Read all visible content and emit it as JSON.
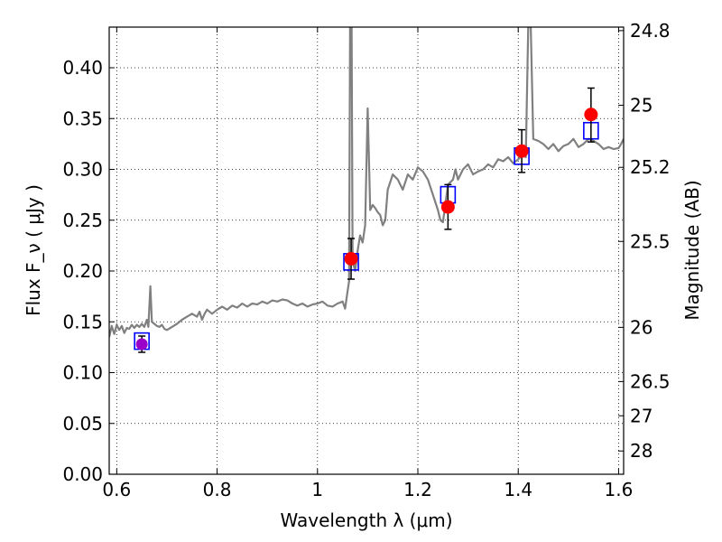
{
  "chart_data": {
    "type": "line",
    "xlabel": "Wavelength  λ (μm)",
    "ylabel_left": "Flux  F_ν  ( μJy )",
    "ylabel_right": "Magnitude (AB)",
    "xlim": [
      0.585,
      1.61
    ],
    "ylim": [
      0.0,
      0.44
    ],
    "grid": true,
    "x_ticks": [
      {
        "value": 0.6,
        "label": "0.6"
      },
      {
        "value": 0.8,
        "label": "0.8"
      },
      {
        "value": 1.0,
        "label": "1"
      },
      {
        "value": 1.2,
        "label": "1.2"
      },
      {
        "value": 1.4,
        "label": "1.4"
      },
      {
        "value": 1.6,
        "label": "1.6"
      }
    ],
    "y_ticks": [
      {
        "value": 0.0,
        "label": "0.00"
      },
      {
        "value": 0.05,
        "label": "0.05"
      },
      {
        "value": 0.1,
        "label": "0.10"
      },
      {
        "value": 0.15,
        "label": "0.15"
      },
      {
        "value": 0.2,
        "label": "0.20"
      },
      {
        "value": 0.25,
        "label": "0.25"
      },
      {
        "value": 0.3,
        "label": "0.30"
      },
      {
        "value": 0.35,
        "label": "0.35"
      },
      {
        "value": 0.4,
        "label": "0.40"
      }
    ],
    "right_ticks": [
      {
        "value": 24.8,
        "label": "24.8"
      },
      {
        "value": 25.0,
        "label": "25"
      },
      {
        "value": 25.2,
        "label": "25.2"
      },
      {
        "value": 25.5,
        "label": "25.5"
      },
      {
        "value": 26.0,
        "label": "26"
      },
      {
        "value": 26.5,
        "label": "26.5"
      },
      {
        "value": 27.0,
        "label": "27"
      },
      {
        "value": 28.0,
        "label": "28"
      }
    ],
    "colors": {
      "spectrum": "#808080",
      "model_box": "#0000ff",
      "observed": "#ff0000",
      "upper_limit": "#9b00c8",
      "errorbar": "#000000"
    },
    "spectrum": {
      "x": [
        0.585,
        0.59,
        0.595,
        0.6,
        0.605,
        0.61,
        0.615,
        0.62,
        0.625,
        0.63,
        0.635,
        0.64,
        0.645,
        0.65,
        0.655,
        0.66,
        0.663,
        0.667,
        0.67,
        0.675,
        0.68,
        0.685,
        0.69,
        0.695,
        0.7,
        0.71,
        0.72,
        0.73,
        0.74,
        0.75,
        0.76,
        0.765,
        0.77,
        0.775,
        0.78,
        0.79,
        0.8,
        0.81,
        0.82,
        0.83,
        0.84,
        0.85,
        0.86,
        0.87,
        0.88,
        0.89,
        0.9,
        0.91,
        0.92,
        0.93,
        0.94,
        0.95,
        0.96,
        0.97,
        0.98,
        0.99,
        1.0,
        1.01,
        1.02,
        1.03,
        1.04,
        1.05,
        1.055,
        1.06,
        1.063,
        1.065,
        1.068,
        1.07,
        1.075,
        1.08,
        1.085,
        1.09,
        1.095,
        1.1,
        1.103,
        1.105,
        1.11,
        1.115,
        1.12,
        1.125,
        1.13,
        1.135,
        1.14,
        1.15,
        1.16,
        1.17,
        1.18,
        1.19,
        1.2,
        1.21,
        1.22,
        1.23,
        1.24,
        1.245,
        1.25,
        1.26,
        1.27,
        1.275,
        1.28,
        1.29,
        1.3,
        1.31,
        1.32,
        1.33,
        1.34,
        1.35,
        1.36,
        1.37,
        1.38,
        1.39,
        1.4,
        1.41,
        1.415,
        1.42,
        1.425,
        1.43,
        1.44,
        1.45,
        1.46,
        1.47,
        1.48,
        1.49,
        1.5,
        1.51,
        1.52,
        1.53,
        1.54,
        1.55,
        1.56,
        1.57,
        1.58,
        1.59,
        1.6,
        1.605,
        1.61
      ],
      "y": [
        0.135,
        0.146,
        0.138,
        0.147,
        0.142,
        0.146,
        0.139,
        0.144,
        0.143,
        0.147,
        0.144,
        0.147,
        0.145,
        0.148,
        0.145,
        0.152,
        0.145,
        0.185,
        0.15,
        0.148,
        0.146,
        0.145,
        0.147,
        0.143,
        0.142,
        0.145,
        0.148,
        0.152,
        0.155,
        0.158,
        0.155,
        0.16,
        0.152,
        0.158,
        0.162,
        0.158,
        0.162,
        0.165,
        0.162,
        0.166,
        0.164,
        0.168,
        0.165,
        0.168,
        0.167,
        0.17,
        0.168,
        0.171,
        0.17,
        0.172,
        0.171,
        0.168,
        0.166,
        0.168,
        0.165,
        0.167,
        0.168,
        0.17,
        0.166,
        0.165,
        0.168,
        0.17,
        0.163,
        0.18,
        0.19,
        0.44,
        0.44,
        0.21,
        0.2,
        0.22,
        0.235,
        0.228,
        0.245,
        0.36,
        0.3,
        0.26,
        0.265,
        0.262,
        0.258,
        0.255,
        0.245,
        0.25,
        0.28,
        0.295,
        0.29,
        0.28,
        0.295,
        0.29,
        0.302,
        0.298,
        0.29,
        0.275,
        0.26,
        0.25,
        0.248,
        0.285,
        0.29,
        0.3,
        0.29,
        0.3,
        0.305,
        0.295,
        0.298,
        0.3,
        0.305,
        0.302,
        0.31,
        0.308,
        0.312,
        0.306,
        0.31,
        0.315,
        0.312,
        0.44,
        0.44,
        0.33,
        0.328,
        0.325,
        0.32,
        0.325,
        0.318,
        0.323,
        0.325,
        0.33,
        0.322,
        0.325,
        0.33,
        0.328,
        0.325,
        0.32,
        0.322,
        0.32,
        0.321,
        0.325,
        0.33
      ]
    },
    "model_boxes": [
      {
        "x": 0.65,
        "y": 0.131
      },
      {
        "x": 1.067,
        "y": 0.209
      },
      {
        "x": 1.26,
        "y": 0.275
      },
      {
        "x": 1.407,
        "y": 0.313
      },
      {
        "x": 1.545,
        "y": 0.338
      }
    ],
    "observations": [
      {
        "x": 0.65,
        "y": 0.128,
        "err_low": 0.12,
        "err_high": 0.136,
        "kind": "upper_limit"
      },
      {
        "x": 1.067,
        "y": 0.212,
        "err_low": 0.192,
        "err_high": 0.232,
        "kind": "detection"
      },
      {
        "x": 1.26,
        "y": 0.263,
        "err_low": 0.241,
        "err_high": 0.285,
        "kind": "detection"
      },
      {
        "x": 1.407,
        "y": 0.318,
        "err_low": 0.297,
        "err_high": 0.339,
        "kind": "detection"
      },
      {
        "x": 1.545,
        "y": 0.354,
        "err_low": 0.327,
        "err_high": 0.38,
        "kind": "detection"
      }
    ]
  }
}
